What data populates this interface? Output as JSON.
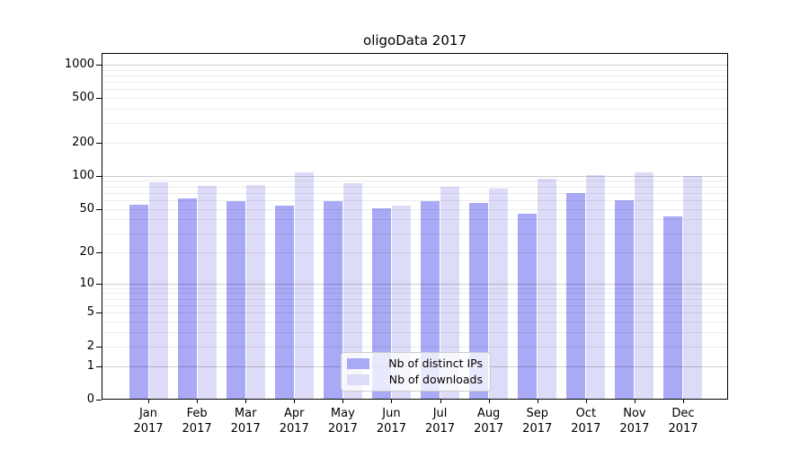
{
  "chart_data": {
    "type": "bar",
    "title": "oligoData 2017",
    "x_categories": [
      {
        "month": "Jan",
        "year": "2017"
      },
      {
        "month": "Feb",
        "year": "2017"
      },
      {
        "month": "Mar",
        "year": "2017"
      },
      {
        "month": "Apr",
        "year": "2017"
      },
      {
        "month": "May",
        "year": "2017"
      },
      {
        "month": "Jun",
        "year": "2017"
      },
      {
        "month": "Jul",
        "year": "2017"
      },
      {
        "month": "Aug",
        "year": "2017"
      },
      {
        "month": "Sep",
        "year": "2017"
      },
      {
        "month": "Oct",
        "year": "2017"
      },
      {
        "month": "Nov",
        "year": "2017"
      },
      {
        "month": "Dec",
        "year": "2017"
      }
    ],
    "series": [
      {
        "name": "Nb of distinct IPs",
        "color": "#a9a9f5",
        "values": [
          55,
          62,
          59,
          54,
          59,
          51,
          59,
          57,
          45,
          70,
          60,
          43
        ]
      },
      {
        "name": "Nb of downloads",
        "color": "#dcdcf8",
        "values": [
          88,
          81,
          83,
          108,
          86,
          54,
          79,
          77,
          95,
          102,
          108,
          100
        ]
      }
    ],
    "y_axis": {
      "scale": "log1p",
      "tick_labels": [
        "1000",
        "500",
        "200",
        "100",
        "50",
        "20",
        "10",
        "5",
        "2",
        "1",
        "0"
      ],
      "tick_values": [
        1000,
        500,
        200,
        100,
        50,
        20,
        10,
        5,
        2,
        1,
        0
      ],
      "range_top": 1270
    },
    "grid": {
      "major_lines": [
        1,
        10,
        100,
        1000
      ],
      "minor_lines": [
        2,
        3,
        4,
        5,
        6,
        7,
        8,
        9,
        20,
        30,
        40,
        50,
        60,
        70,
        80,
        90,
        200,
        300,
        400,
        500,
        600,
        700,
        800,
        900
      ]
    },
    "legend": {
      "position": "lower center"
    }
  },
  "colors": {
    "bar_ips": "#a9a9f5",
    "bar_downloads": "#dcdcf8",
    "grid_major": "rgba(0,0,0,0.20)",
    "grid_minor": "rgba(0,0,0,0.08)",
    "axis": "#000000",
    "legend_border": "#cccccc",
    "legend_bg": "rgba(255,255,255,0.75)"
  }
}
